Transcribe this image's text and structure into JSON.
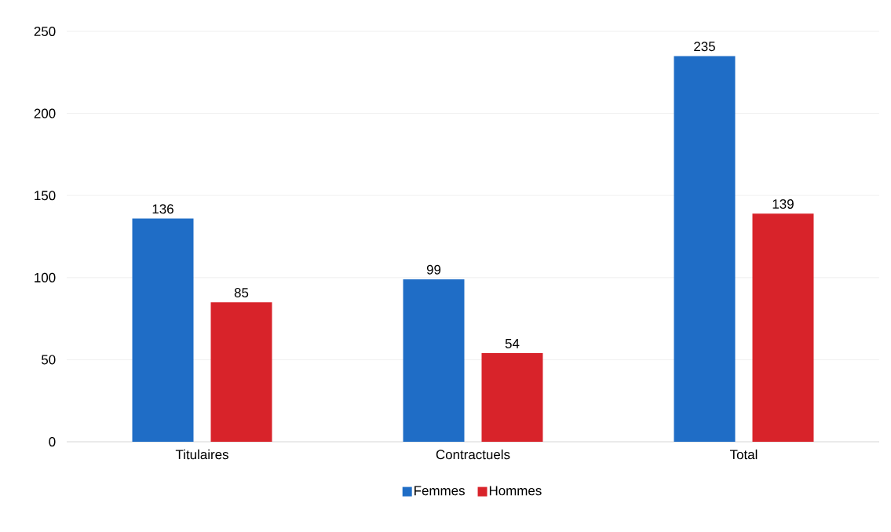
{
  "chart_data": {
    "type": "bar",
    "categories": [
      "Titulaires",
      "Contractuels",
      "Total"
    ],
    "series": [
      {
        "name": "Femmes",
        "color": "#1f6dc6",
        "values": [
          136,
          99,
          235
        ]
      },
      {
        "name": "Hommes",
        "color": "#d8232a",
        "values": [
          85,
          54,
          139
        ]
      }
    ],
    "ylim": [
      0,
      250
    ],
    "yticks": [
      0,
      50,
      100,
      150,
      200,
      250
    ],
    "grid": "y",
    "legend": "bottom",
    "data_labels": true
  }
}
